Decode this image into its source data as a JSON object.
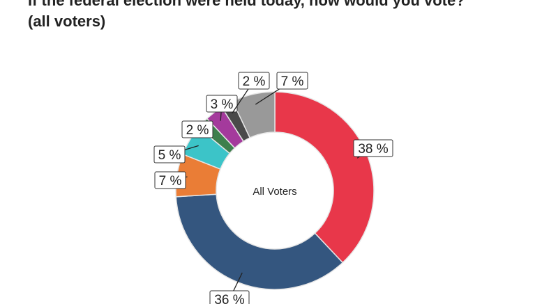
{
  "chart_data": {
    "type": "pie",
    "variant": "donut",
    "title_line1": "If the federal election were held today, how would you vote?",
    "title_line2": "(all voters)",
    "center_label": "All Voters",
    "slices": [
      {
        "value": 38,
        "label": "38 %",
        "color": "#e8374a"
      },
      {
        "value": 36,
        "label": "36 %",
        "color": "#34567f"
      },
      {
        "value": 7,
        "label": "7 %",
        "color": "#ea7d36"
      },
      {
        "value": 5,
        "label": "5 %",
        "color": "#3cc4c8"
      },
      {
        "value": 2,
        "label": "2 %",
        "color": "#3e7f4d"
      },
      {
        "value": 3,
        "label": "3 %",
        "color": "#a43a9c"
      },
      {
        "value": 2,
        "label": "2 %",
        "color": "#4a4a4a"
      },
      {
        "value": 7,
        "label": "7 %",
        "color": "#999999"
      }
    ]
  }
}
